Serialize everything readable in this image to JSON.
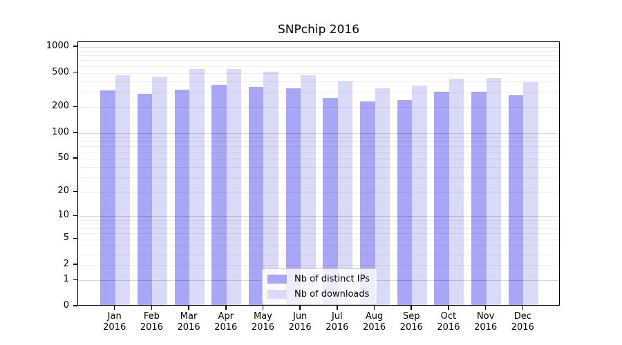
{
  "chart_data": {
    "type": "bar",
    "title": "SNPchip 2016",
    "categories": [
      {
        "label": "Jan",
        "sublabel": "2016"
      },
      {
        "label": "Feb",
        "sublabel": "2016"
      },
      {
        "label": "Mar",
        "sublabel": "2016"
      },
      {
        "label": "Apr",
        "sublabel": "2016"
      },
      {
        "label": "May",
        "sublabel": "2016"
      },
      {
        "label": "Jun",
        "sublabel": "2016"
      },
      {
        "label": "Jul",
        "sublabel": "2016"
      },
      {
        "label": "Aug",
        "sublabel": "2016"
      },
      {
        "label": "Sep",
        "sublabel": "2016"
      },
      {
        "label": "Oct",
        "sublabel": "2016"
      },
      {
        "label": "Nov",
        "sublabel": "2016"
      },
      {
        "label": "Dec",
        "sublabel": "2016"
      }
    ],
    "series": [
      {
        "name": "Nb of distinct IPs",
        "color": "#a7a7f5",
        "values": [
          316,
          285,
          322,
          365,
          344,
          333,
          256,
          235,
          242,
          304,
          305,
          276
        ]
      },
      {
        "name": "Nb of downloads",
        "color": "#d9d9f8",
        "values": [
          470,
          455,
          553,
          560,
          517,
          466,
          399,
          333,
          358,
          430,
          434,
          392
        ]
      }
    ],
    "y_axis": {
      "scale": "log1p",
      "range": [
        0,
        1000
      ],
      "ticks": [
        0,
        1,
        2,
        5,
        10,
        20,
        50,
        100,
        200,
        500,
        1000
      ],
      "minor_gridlines": [
        3,
        4,
        6,
        7,
        8,
        9,
        30,
        40,
        60,
        70,
        80,
        90,
        300,
        400,
        600,
        700,
        800,
        900
      ],
      "major_gridlines": [
        1,
        10,
        100,
        1000
      ]
    },
    "x_axis": {
      "label": ""
    },
    "legend": {
      "position": "bottom-center"
    },
    "grid": "on"
  }
}
